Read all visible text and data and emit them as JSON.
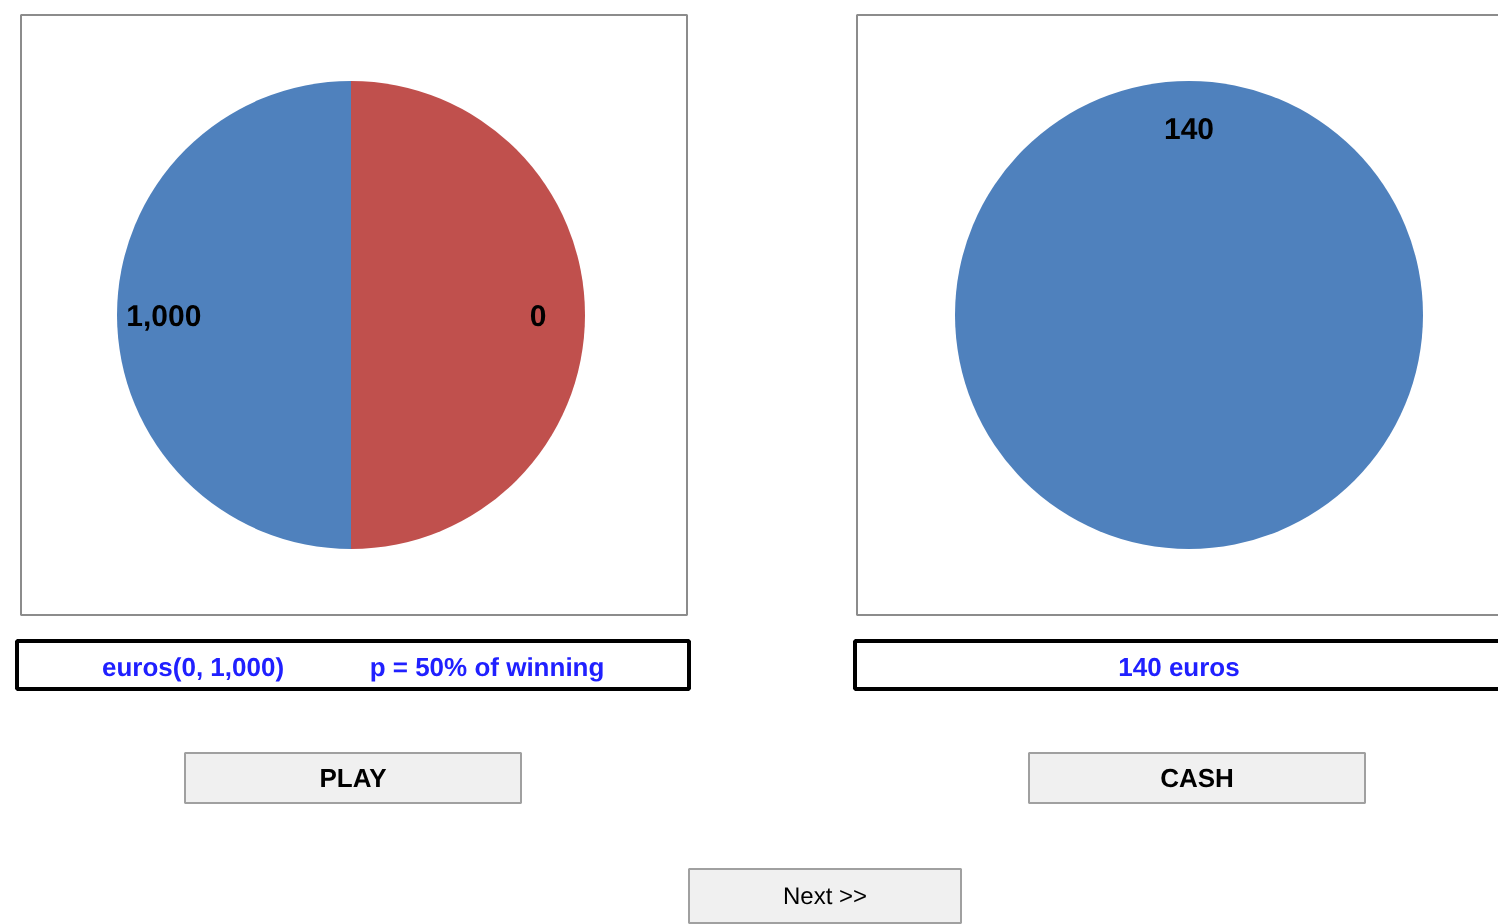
{
  "chart_data": [
    {
      "type": "pie",
      "categories": [
        "0",
        "1,000"
      ],
      "values": [
        50,
        50
      ],
      "colors": [
        "#c0504d",
        "#4f81bd"
      ],
      "annotations": [
        "euros(0, 1,000)",
        "p = 50% of winning",
        "PLAY"
      ]
    },
    {
      "type": "pie",
      "categories": [
        "140"
      ],
      "values": [
        100
      ],
      "colors": [
        "#4f81bd"
      ],
      "annotations": [
        "140 euros",
        "CASH",
        "Next >>"
      ]
    }
  ]
}
